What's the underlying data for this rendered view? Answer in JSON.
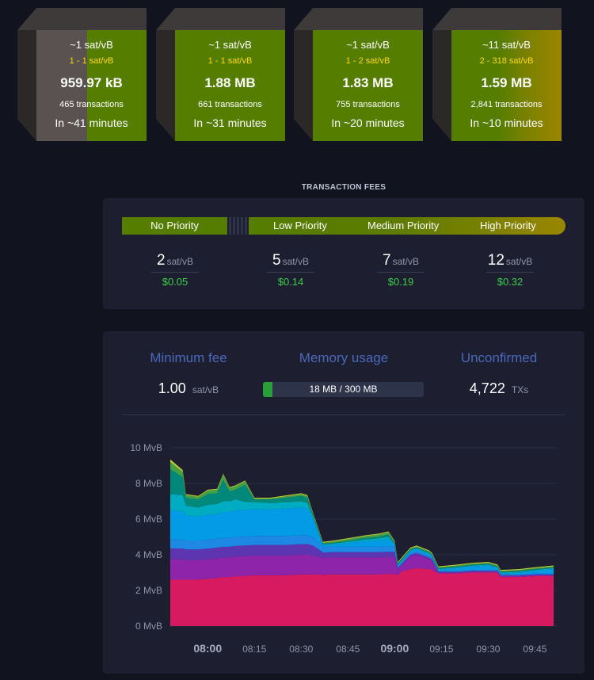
{
  "blocks": [
    {
      "median": "~1 sat/vB",
      "range": "1 - 1 sat/vB",
      "size": "959.97 kB",
      "transactions": "465 transactions",
      "eta": "In ~41 minutes",
      "fill_fraction": 0.5
    },
    {
      "median": "~1 sat/vB",
      "range": "1 - 1 sat/vB",
      "size": "1.88 MB",
      "transactions": "661 transactions",
      "eta": "In ~31 minutes",
      "fill_fraction": 1.0
    },
    {
      "median": "~1 sat/vB",
      "range": "1 - 2 sat/vB",
      "size": "1.83 MB",
      "transactions": "755 transactions",
      "eta": "In ~20 minutes",
      "fill_fraction": 1.0
    },
    {
      "median": "~11 sat/vB",
      "range": "2 - 318 sat/vB",
      "size": "1.59 MB",
      "transactions": "2,841 transactions",
      "eta": "In ~10 minutes",
      "fill_fraction": 1.0
    }
  ],
  "fees": {
    "title": "TRANSACTION FEES",
    "bar_labels": {
      "no_priority": "No Priority",
      "low": "Low Priority",
      "medium": "Medium Priority",
      "high": "High Priority"
    },
    "unit": "sat/vB",
    "levels": [
      {
        "value": "2",
        "usd": "$0.05"
      },
      {
        "value": "5",
        "usd": "$0.14"
      },
      {
        "value": "7",
        "usd": "$0.19"
      },
      {
        "value": "12",
        "usd": "$0.32"
      }
    ]
  },
  "mempool": {
    "min_fee": {
      "label": "Minimum fee",
      "value": "1.00",
      "unit": "sat/vB"
    },
    "memory": {
      "label": "Memory usage",
      "text": "18 MB / 300 MB",
      "fraction": 0.06
    },
    "unconfirmed": {
      "label": "Unconfirmed",
      "value": "4,722",
      "unit": "TXs"
    }
  },
  "colors": {
    "block_green": "#557d00",
    "block_gold": "#9a8600",
    "range_yellow": "#ffd800",
    "usd_green": "#3bcc49",
    "heading_blue": "#4a68b9",
    "memory_fill": "#2b9e3c"
  },
  "chart_data": {
    "type": "area",
    "stacked": true,
    "y_unit": "MvB",
    "ylim": [
      0,
      10
    ],
    "y_ticks": [
      "0 MvB",
      "2 MvB",
      "4 MvB",
      "6 MvB",
      "8 MvB",
      "10 MvB"
    ],
    "y_tick_values": [
      0,
      2,
      4,
      6,
      8,
      10
    ],
    "xlim": [
      "07:48",
      "09:52"
    ],
    "x_ticks": [
      "08:00",
      "08:15",
      "08:30",
      "08:45",
      "09:00",
      "09:15",
      "09:30",
      "09:45"
    ],
    "x_bold_ticks": [
      "08:00",
      "09:00"
    ],
    "grid": true,
    "x": [
      "07:48",
      "07:52",
      "07:53",
      "07:57",
      "08:00",
      "08:03",
      "08:05",
      "08:07",
      "08:09",
      "08:12",
      "08:15",
      "08:20",
      "08:25",
      "08:30",
      "08:32",
      "08:34",
      "08:37",
      "08:40",
      "08:45",
      "08:50",
      "08:55",
      "08:58",
      "09:00",
      "09:01",
      "09:02",
      "09:05",
      "09:07",
      "09:11",
      "09:12",
      "09:14",
      "09:17",
      "09:20",
      "09:25",
      "09:30",
      "09:33",
      "09:34",
      "09:40",
      "09:45",
      "09:48",
      "09:51"
    ],
    "series": [
      {
        "color": "#d81b60",
        "values": [
          2.6,
          2.6,
          2.6,
          2.6,
          2.65,
          2.7,
          2.75,
          2.75,
          2.8,
          2.82,
          2.85,
          2.85,
          2.85,
          2.9,
          2.9,
          2.9,
          2.88,
          2.9,
          2.9,
          2.9,
          2.9,
          2.92,
          2.92,
          2.85,
          3.05,
          3.2,
          3.25,
          3.2,
          3.15,
          2.95,
          2.95,
          2.95,
          3.0,
          3.0,
          3.0,
          2.75,
          2.75,
          2.8,
          2.8,
          2.8
        ]
      },
      {
        "color": "#8e24aa",
        "values": [
          1.15,
          1.15,
          1.1,
          1.1,
          1.1,
          1.1,
          1.1,
          1.1,
          1.1,
          1.1,
          1.1,
          1.1,
          1.1,
          1.1,
          1.1,
          1.05,
          0.95,
          0.95,
          0.95,
          0.95,
          0.95,
          0.95,
          0.95,
          0.3,
          0.3,
          0.7,
          0.75,
          0.55,
          0.5,
          0.05,
          0.05,
          0.05,
          0.05,
          0.05,
          0.05,
          0.05,
          0.05,
          0.05,
          0.05,
          0.05
        ]
      },
      {
        "color": "#5e35b1",
        "values": [
          0.6,
          0.6,
          0.6,
          0.6,
          0.6,
          0.6,
          0.6,
          0.6,
          0.6,
          0.6,
          0.6,
          0.6,
          0.6,
          0.6,
          0.6,
          0.55,
          0.3,
          0.3,
          0.3,
          0.3,
          0.3,
          0.3,
          0.3,
          0.1,
          0.1,
          0.1,
          0.1,
          0.1,
          0.1,
          0.05,
          0.05,
          0.05,
          0.05,
          0.05,
          0.05,
          0.05,
          0.05,
          0.05,
          0.05,
          0.05
        ]
      },
      {
        "color": "#1e88e5",
        "values": [
          0.5,
          0.5,
          0.5,
          0.5,
          0.5,
          0.5,
          0.5,
          0.5,
          0.5,
          0.5,
          0.5,
          0.5,
          0.5,
          0.5,
          0.5,
          0.45,
          0.3,
          0.3,
          0.3,
          0.3,
          0.3,
          0.3,
          0.3,
          0.1,
          0.1,
          0.1,
          0.1,
          0.1,
          0.1,
          0.05,
          0.05,
          0.05,
          0.05,
          0.05,
          0.05,
          0.05,
          0.05,
          0.05,
          0.05,
          0.05
        ]
      },
      {
        "color": "#039be5",
        "values": [
          1.65,
          1.6,
          1.4,
          1.35,
          1.4,
          1.4,
          1.45,
          1.45,
          1.5,
          1.5,
          1.5,
          1.5,
          1.55,
          1.55,
          1.5,
          0.95,
          0.1,
          0.12,
          0.2,
          0.3,
          0.35,
          0.4,
          0.1,
          0.05,
          0.05,
          0.1,
          0.12,
          0.1,
          0.05,
          0.05,
          0.1,
          0.15,
          0.2,
          0.25,
          0.1,
          0.05,
          0.1,
          0.15,
          0.2,
          0.25
        ]
      },
      {
        "color": "#00acc1",
        "values": [
          0.9,
          0.9,
          0.55,
          0.5,
          0.55,
          0.55,
          0.6,
          0.6,
          0.6,
          0.45,
          0.4,
          0.35,
          0.35,
          0.35,
          0.3,
          0.15,
          0.05,
          0.05,
          0.08,
          0.1,
          0.12,
          0.15,
          0.05,
          0.05,
          0.05,
          0.05,
          0.05,
          0.05,
          0.05,
          0.05,
          0.05,
          0.05,
          0.05,
          0.05,
          0.05,
          0.05,
          0.05,
          0.05,
          0.05,
          0.05
        ]
      },
      {
        "color": "#00897b",
        "values": [
          1.4,
          1.0,
          0.45,
          0.45,
          0.6,
          0.6,
          1.2,
          0.55,
          0.55,
          0.95,
          0.15,
          0.2,
          0.25,
          0.3,
          0.3,
          0.1,
          0.05,
          0.05,
          0.05,
          0.08,
          0.1,
          0.12,
          0.05,
          0.05,
          0.05,
          0.05,
          0.05,
          0.05,
          0.05,
          0.05,
          0.05,
          0.05,
          0.05,
          0.05,
          0.05,
          0.05,
          0.05,
          0.05,
          0.05,
          0.05
        ]
      },
      {
        "color": "#43a047",
        "values": [
          0.4,
          0.3,
          0.15,
          0.15,
          0.2,
          0.2,
          0.3,
          0.2,
          0.2,
          0.2,
          0.05,
          0.05,
          0.08,
          0.1,
          0.1,
          0.05,
          0.05,
          0.07,
          0.1,
          0.1,
          0.12,
          0.12,
          0.05,
          0.05,
          0.05,
          0.05,
          0.05,
          0.05,
          0.05,
          0.05,
          0.05,
          0.05,
          0.05,
          0.05,
          0.05,
          0.05,
          0.05,
          0.05,
          0.05,
          0.05
        ]
      },
      {
        "color": "#c0ca33",
        "values": [
          0.15,
          0.1,
          0.05,
          0.05,
          0.05,
          0.05,
          0.05,
          0.05,
          0.05,
          0.05,
          0.05,
          0.05,
          0.05,
          0.05,
          0.05,
          0.05,
          0.05,
          0.05,
          0.05,
          0.05,
          0.05,
          0.05,
          0.05,
          0.05,
          0.05,
          0.05,
          0.05,
          0.05,
          0.05,
          0.05,
          0.05,
          0.05,
          0.05,
          0.05,
          0.05,
          0.05,
          0.05,
          0.05,
          0.05,
          0.05
        ]
      }
    ]
  }
}
